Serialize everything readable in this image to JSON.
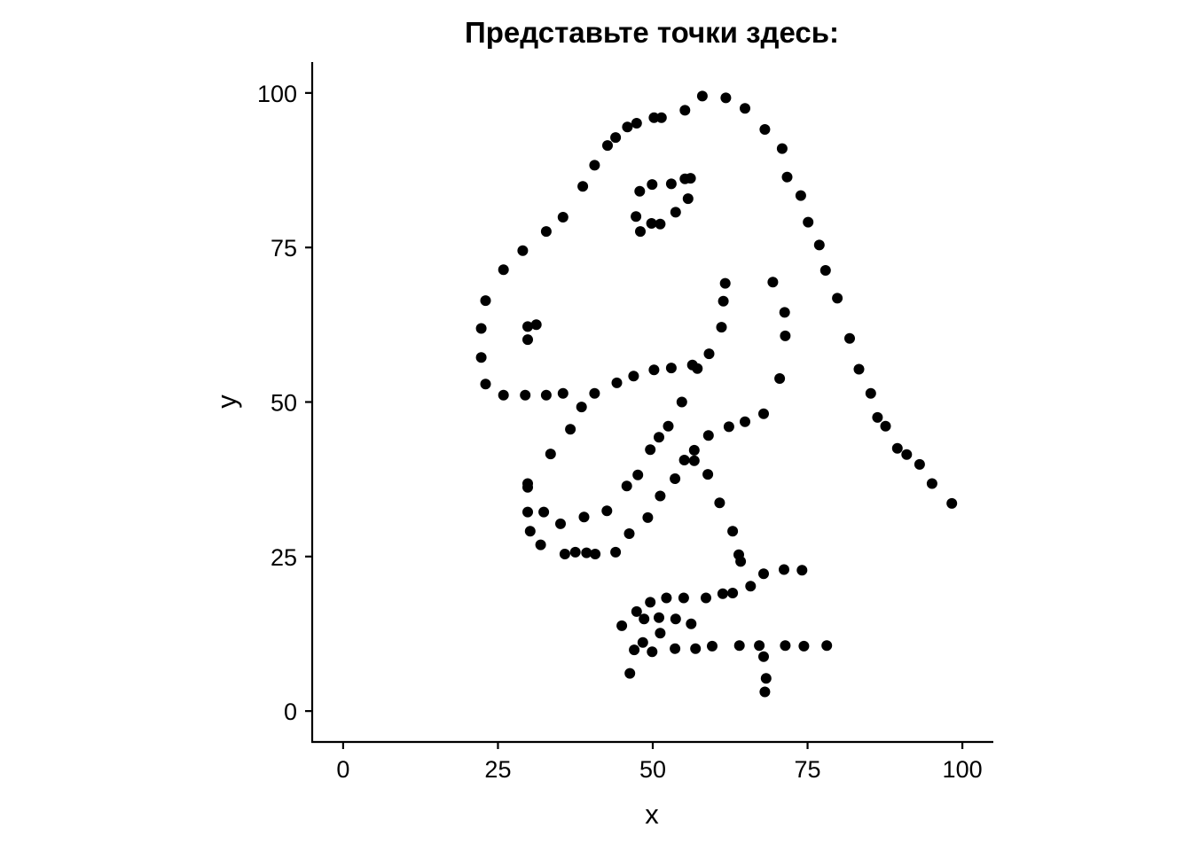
{
  "chart_data": {
    "type": "scatter",
    "title": "Представьте точки здесь:",
    "xlabel": "x",
    "ylabel": "y",
    "xlim": [
      -5,
      105
    ],
    "ylim": [
      -5,
      105
    ],
    "x_ticks": [
      0,
      25,
      50,
      75,
      100
    ],
    "y_ticks": [
      0,
      25,
      50,
      75,
      100
    ],
    "x_tick_labels": [
      "0",
      "25",
      "50",
      "75",
      "100"
    ],
    "y_tick_labels": [
      "0",
      "25",
      "50",
      "75",
      "100"
    ],
    "grid": false,
    "point_color": "#000000",
    "points": [
      [
        58.0,
        99.5
      ],
      [
        61.8,
        99.2
      ],
      [
        64.9,
        97.5
      ],
      [
        55.2,
        97.2
      ],
      [
        68.1,
        94.1
      ],
      [
        50.2,
        96.0
      ],
      [
        51.4,
        96.0
      ],
      [
        47.4,
        95.1
      ],
      [
        45.9,
        94.5
      ],
      [
        44.0,
        92.8
      ],
      [
        42.7,
        91.5
      ],
      [
        70.9,
        91.0
      ],
      [
        40.6,
        88.3
      ],
      [
        71.7,
        86.4
      ],
      [
        38.7,
        84.9
      ],
      [
        73.9,
        83.4
      ],
      [
        35.5,
        79.9
      ],
      [
        75.1,
        79.1
      ],
      [
        32.8,
        77.6
      ],
      [
        76.9,
        75.4
      ],
      [
        29.0,
        74.5
      ],
      [
        77.9,
        71.3
      ],
      [
        25.9,
        71.4
      ],
      [
        79.8,
        66.8
      ],
      [
        23.0,
        66.4
      ],
      [
        22.3,
        61.9
      ],
      [
        81.8,
        60.3
      ],
      [
        22.3,
        57.2
      ],
      [
        83.3,
        55.3
      ],
      [
        23.0,
        52.9
      ],
      [
        85.2,
        51.4
      ],
      [
        86.3,
        47.5
      ],
      [
        25.9,
        51.1
      ],
      [
        29.4,
        51.1
      ],
      [
        32.8,
        51.1
      ],
      [
        35.5,
        51.4
      ],
      [
        40.6,
        51.4
      ],
      [
        38.5,
        49.2
      ],
      [
        87.6,
        46.1
      ],
      [
        36.7,
        45.6
      ],
      [
        89.5,
        42.5
      ],
      [
        91.0,
        41.5
      ],
      [
        93.1,
        39.9
      ],
      [
        95.1,
        36.8
      ],
      [
        98.3,
        33.6
      ],
      [
        29.8,
        62.2
      ],
      [
        31.2,
        62.5
      ],
      [
        29.8,
        60.1
      ],
      [
        33.5,
        41.6
      ],
      [
        29.8,
        36.8
      ],
      [
        29.8,
        36.2
      ],
      [
        29.8,
        32.2
      ],
      [
        32.4,
        32.2
      ],
      [
        35.1,
        30.3
      ],
      [
        30.2,
        29.1
      ],
      [
        31.9,
        26.9
      ],
      [
        35.8,
        25.4
      ],
      [
        37.5,
        25.7
      ],
      [
        39.3,
        25.6
      ],
      [
        40.7,
        25.4
      ],
      [
        44.0,
        25.7
      ],
      [
        38.9,
        31.4
      ],
      [
        42.6,
        32.4
      ],
      [
        46.2,
        28.7
      ],
      [
        49.2,
        31.3
      ],
      [
        51.2,
        34.8
      ],
      [
        53.6,
        37.6
      ],
      [
        55.1,
        40.6
      ],
      [
        56.7,
        40.5
      ],
      [
        56.7,
        42.2
      ],
      [
        58.9,
        38.3
      ],
      [
        60.8,
        33.7
      ],
      [
        62.9,
        29.1
      ],
      [
        63.9,
        25.3
      ],
      [
        64.2,
        24.2
      ],
      [
        45.8,
        36.4
      ],
      [
        47.6,
        38.2
      ],
      [
        49.6,
        42.3
      ],
      [
        51.0,
        44.3
      ],
      [
        52.5,
        46.1
      ],
      [
        54.7,
        50.0
      ],
      [
        59.0,
        44.6
      ],
      [
        62.3,
        46.0
      ],
      [
        64.9,
        46.8
      ],
      [
        67.9,
        48.1
      ],
      [
        44.2,
        53.1
      ],
      [
        46.9,
        54.2
      ],
      [
        50.2,
        55.2
      ],
      [
        53.0,
        55.5
      ],
      [
        56.4,
        56.0
      ],
      [
        57.2,
        55.4
      ],
      [
        59.1,
        57.8
      ],
      [
        61.1,
        62.1
      ],
      [
        61.4,
        66.3
      ],
      [
        61.7,
        69.2
      ],
      [
        69.4,
        69.4
      ],
      [
        71.3,
        64.5
      ],
      [
        71.4,
        60.7
      ],
      [
        70.5,
        53.8
      ],
      [
        47.3,
        80.0
      ],
      [
        48.0,
        77.6
      ],
      [
        49.8,
        78.9
      ],
      [
        51.2,
        78.8
      ],
      [
        53.7,
        80.7
      ],
      [
        55.7,
        82.9
      ],
      [
        56.1,
        86.2
      ],
      [
        55.2,
        86.1
      ],
      [
        53.0,
        85.3
      ],
      [
        49.9,
        85.2
      ],
      [
        47.9,
        84.1
      ],
      [
        45.0,
        13.8
      ],
      [
        46.3,
        6.1
      ],
      [
        47.0,
        9.9
      ],
      [
        48.4,
        11.1
      ],
      [
        49.9,
        9.6
      ],
      [
        51.2,
        12.6
      ],
      [
        53.6,
        10.1
      ],
      [
        56.9,
        10.1
      ],
      [
        59.6,
        10.5
      ],
      [
        64.0,
        10.6
      ],
      [
        67.2,
        10.6
      ],
      [
        67.9,
        8.8
      ],
      [
        68.3,
        5.3
      ],
      [
        68.1,
        3.1
      ],
      [
        71.4,
        10.6
      ],
      [
        74.4,
        10.5
      ],
      [
        78.1,
        10.6
      ],
      [
        47.4,
        16.1
      ],
      [
        48.6,
        14.9
      ],
      [
        49.6,
        17.6
      ],
      [
        51.0,
        15.1
      ],
      [
        52.2,
        18.3
      ],
      [
        53.7,
        14.9
      ],
      [
        55.0,
        18.3
      ],
      [
        56.2,
        14.1
      ],
      [
        58.6,
        18.3
      ],
      [
        61.3,
        19.0
      ],
      [
        62.9,
        19.1
      ],
      [
        65.8,
        20.2
      ],
      [
        67.9,
        22.2
      ],
      [
        71.2,
        22.9
      ],
      [
        74.1,
        22.8
      ]
    ]
  }
}
